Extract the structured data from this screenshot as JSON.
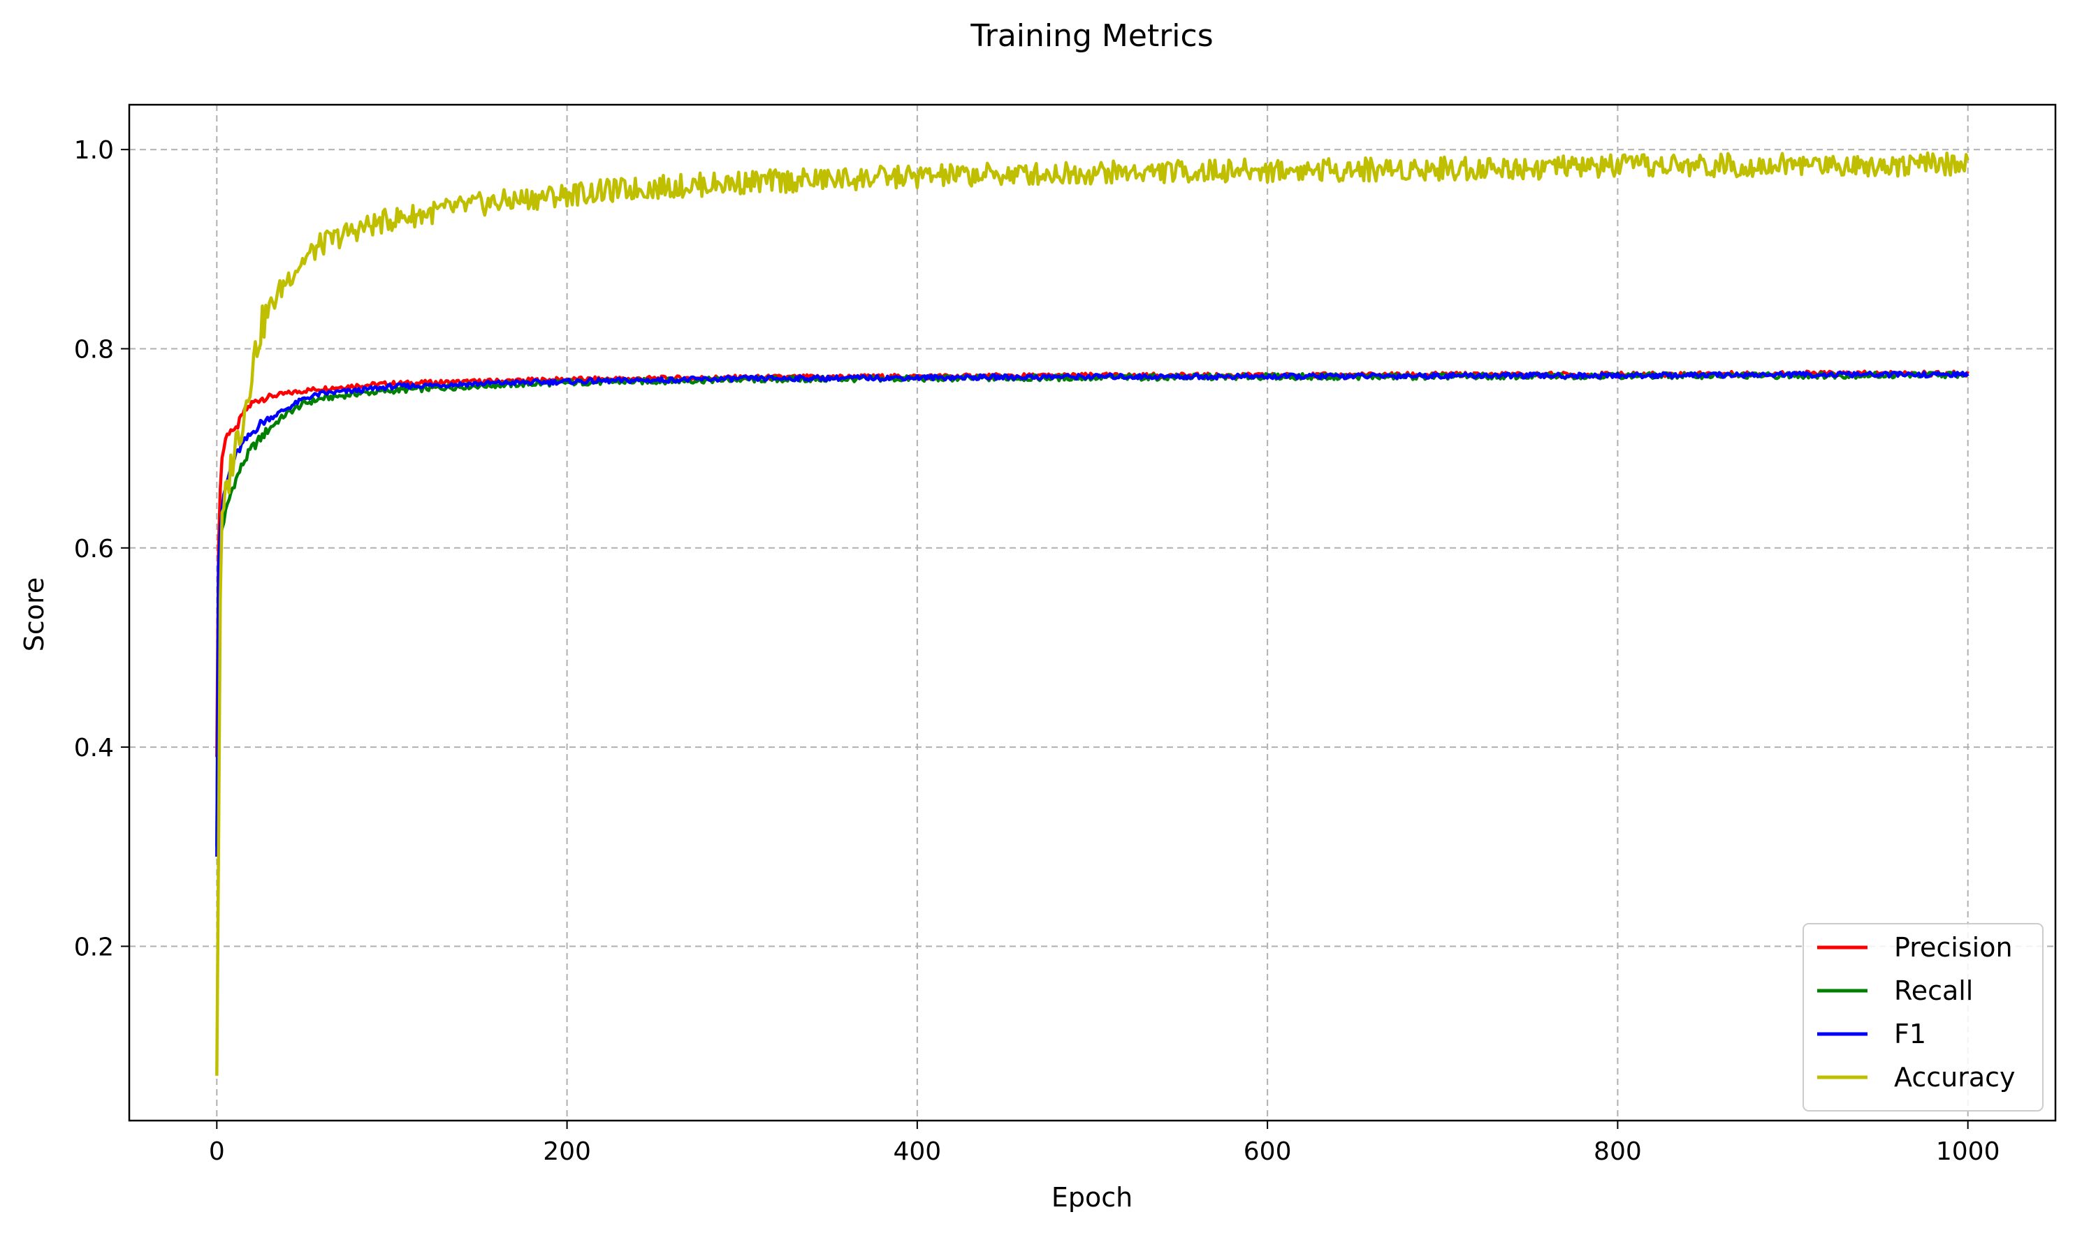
{
  "chart_data": {
    "type": "line",
    "title": "Training Metrics",
    "xlabel": "Epoch",
    "ylabel": "Score",
    "xlim": [
      -50,
      1050
    ],
    "ylim": [
      0.025,
      1.045
    ],
    "xticks": [
      0,
      200,
      400,
      600,
      800,
      1000
    ],
    "yticks": [
      0.2,
      0.4,
      0.6,
      0.8,
      1.0
    ],
    "xtick_labels": [
      "0",
      "200",
      "400",
      "600",
      "800",
      "1000"
    ],
    "ytick_labels": [
      "0.2",
      "0.4",
      "0.6",
      "0.8",
      "1.0"
    ],
    "grid": true,
    "legend_position": "lower-right",
    "series": [
      {
        "name": "Precision",
        "color": "#ff0000",
        "x": [
          0,
          1,
          2,
          3,
          5,
          8,
          10,
          15,
          20,
          25,
          30,
          40,
          50,
          60,
          80,
          100,
          150,
          200,
          300,
          400,
          500,
          600,
          700,
          800,
          900,
          1000
        ],
        "y": [
          0.39,
          0.6,
          0.66,
          0.69,
          0.71,
          0.72,
          0.715,
          0.735,
          0.745,
          0.75,
          0.752,
          0.755,
          0.758,
          0.76,
          0.763,
          0.765,
          0.767,
          0.769,
          0.771,
          0.772,
          0.773,
          0.773,
          0.774,
          0.774,
          0.775,
          0.775
        ]
      },
      {
        "name": "Recall",
        "color": "#008000",
        "x": [
          0,
          1,
          2,
          3,
          5,
          8,
          10,
          15,
          20,
          25,
          30,
          40,
          50,
          60,
          80,
          100,
          150,
          200,
          300,
          400,
          500,
          600,
          700,
          800,
          900,
          1000
        ],
        "y": [
          0.3,
          0.58,
          0.61,
          0.62,
          0.635,
          0.655,
          0.665,
          0.685,
          0.7,
          0.71,
          0.72,
          0.735,
          0.745,
          0.75,
          0.755,
          0.758,
          0.763,
          0.766,
          0.769,
          0.77,
          0.771,
          0.772,
          0.772,
          0.773,
          0.773,
          0.774
        ]
      },
      {
        "name": "F1",
        "color": "#0000ff",
        "x": [
          0,
          1,
          2,
          3,
          5,
          8,
          10,
          15,
          20,
          25,
          30,
          40,
          50,
          60,
          80,
          100,
          150,
          200,
          300,
          400,
          500,
          600,
          700,
          800,
          900,
          1000
        ],
        "y": [
          0.29,
          0.58,
          0.62,
          0.64,
          0.66,
          0.68,
          0.69,
          0.705,
          0.715,
          0.725,
          0.73,
          0.74,
          0.75,
          0.755,
          0.758,
          0.762,
          0.765,
          0.767,
          0.77,
          0.771,
          0.772,
          0.772,
          0.773,
          0.773,
          0.774,
          0.774
        ]
      },
      {
        "name": "Accuracy",
        "color": "#bfbf00",
        "x": [
          0,
          1,
          2,
          3,
          5,
          8,
          10,
          15,
          20,
          25,
          30,
          40,
          50,
          60,
          80,
          100,
          150,
          200,
          250,
          300,
          400,
          500,
          600,
          700,
          800,
          900,
          1000
        ],
        "y": [
          0.07,
          0.3,
          0.55,
          0.62,
          0.65,
          0.68,
          0.7,
          0.73,
          0.78,
          0.82,
          0.84,
          0.87,
          0.89,
          0.905,
          0.92,
          0.93,
          0.945,
          0.955,
          0.962,
          0.967,
          0.973,
          0.977,
          0.979,
          0.981,
          0.983,
          0.985,
          0.985
        ]
      }
    ]
  }
}
